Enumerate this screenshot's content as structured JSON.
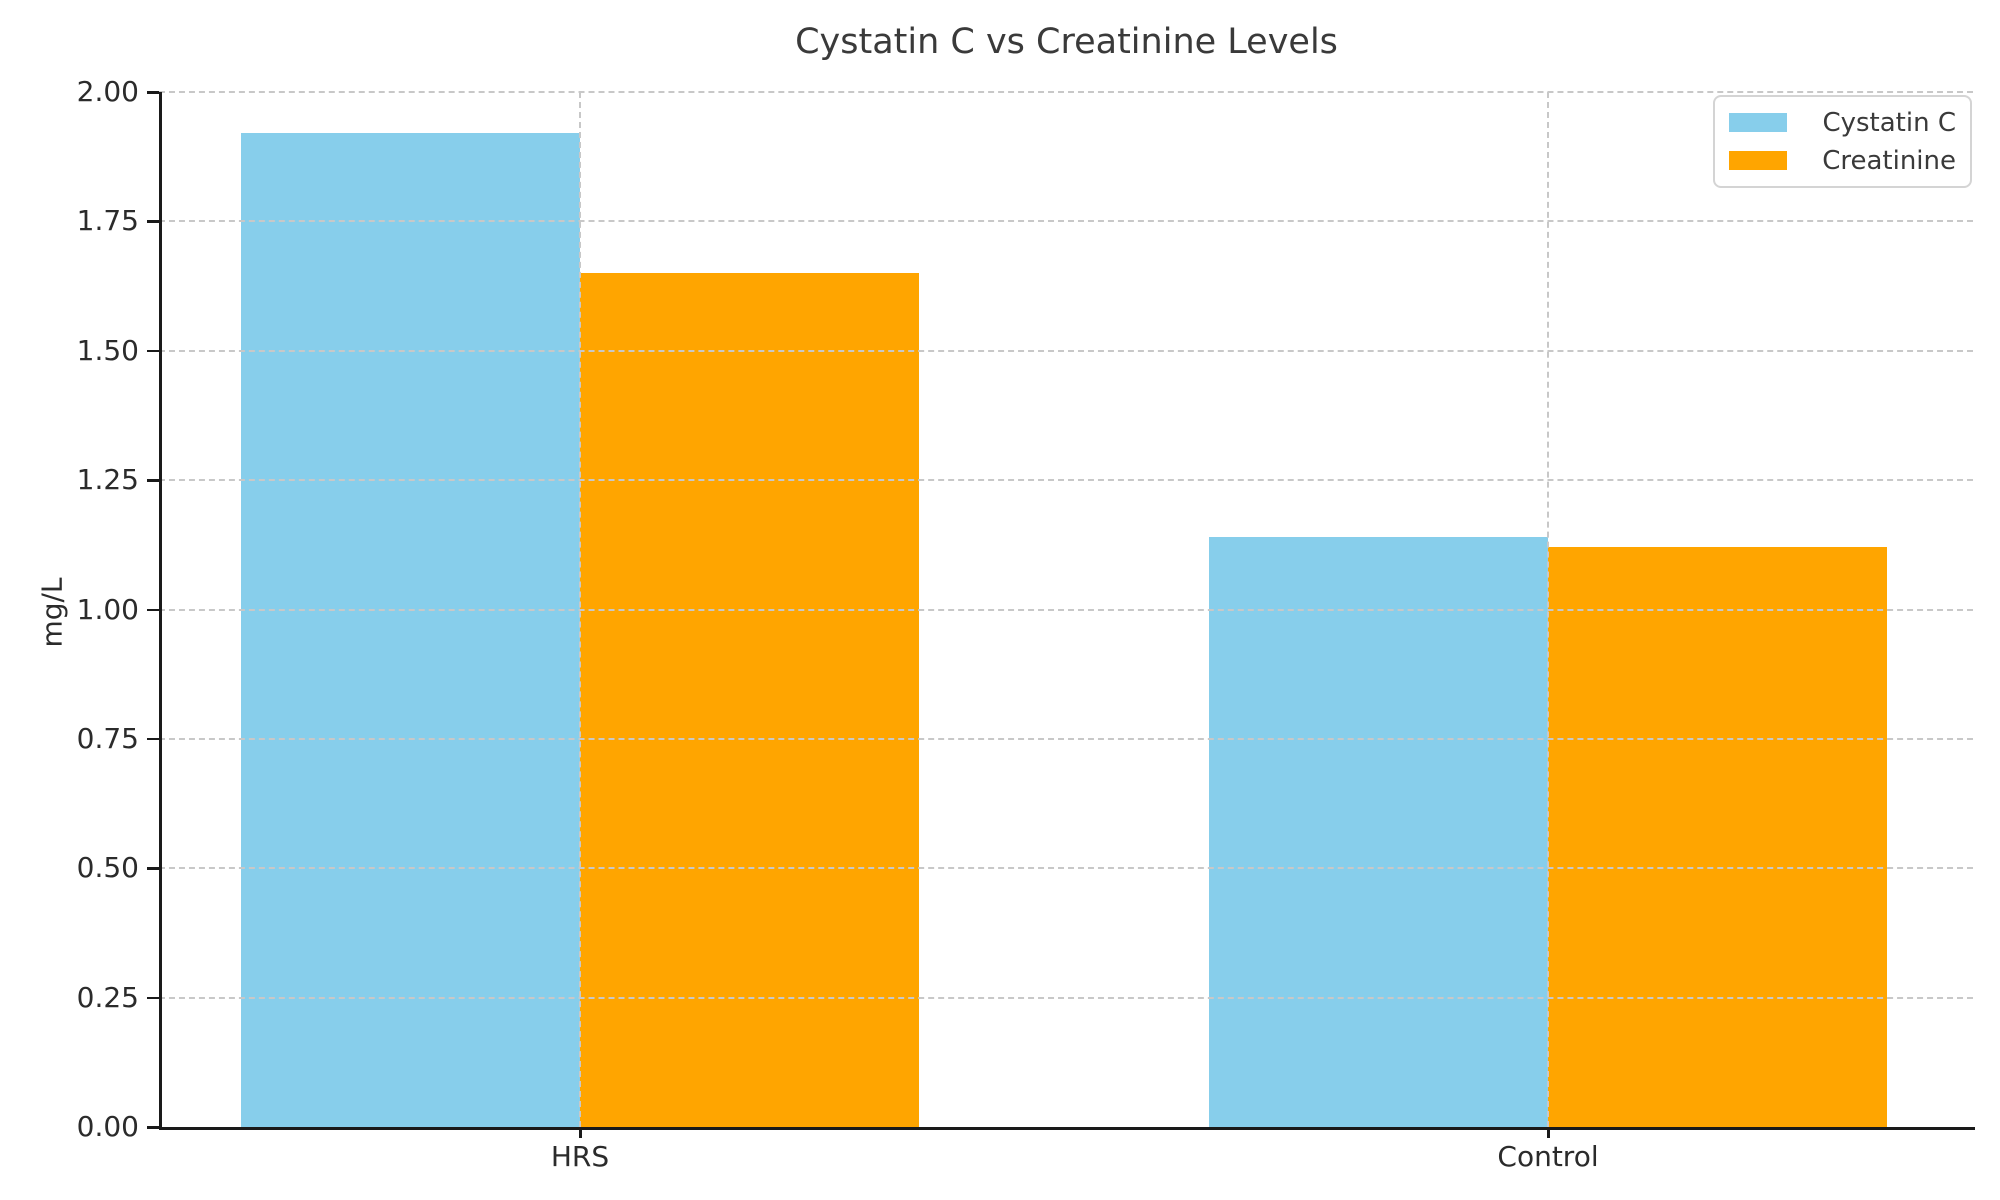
{
  "chart_data": {
    "type": "bar",
    "title": "Cystatin C vs Creatinine Levels",
    "categories": [
      "HRS",
      "Control"
    ],
    "series": [
      {
        "name": "Cystatin C",
        "color": "#87CEEB",
        "values": [
          1.92,
          1.14
        ]
      },
      {
        "name": "Creatinine",
        "color": "#FFA500",
        "values": [
          1.65,
          1.12
        ]
      }
    ],
    "xlabel": "",
    "ylabel": "mg/L",
    "ylim": [
      0.0,
      2.0
    ],
    "ytick_step": 0.25,
    "ytick_labels": [
      "0.00",
      "0.25",
      "0.50",
      "0.75",
      "1.00",
      "1.25",
      "1.50",
      "1.75",
      "2.00"
    ],
    "grid": "dashed",
    "grid_on_top_of_bars": true,
    "legend": {
      "position": "top-right",
      "entries": [
        "Cystatin C",
        "Creatinine"
      ]
    },
    "colors": {
      "cystatin_c": "#87CEEB",
      "creatinine": "#FFA500",
      "grid": "#c8c8c8",
      "axis": "#1a1a1a",
      "text": "#2b2b2b",
      "background": "#ffffff"
    }
  }
}
